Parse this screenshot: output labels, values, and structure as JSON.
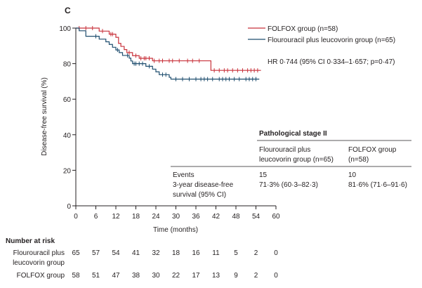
{
  "chart_data": {
    "type": "line",
    "panel_label": "C",
    "xlabel": "Time (months)",
    "ylabel": "Disease-free survival (%)",
    "xlim": [
      0,
      60
    ],
    "ylim": [
      0,
      100
    ],
    "x_ticks": [
      "0",
      "6",
      "12",
      "18",
      "24",
      "30",
      "36",
      "42",
      "48",
      "54",
      "60"
    ],
    "y_ticks": [
      "0",
      "20",
      "40",
      "60",
      "80",
      "100"
    ],
    "grid": false,
    "legend_position": "top-right",
    "series": [
      {
        "name": "FOLFOX group (n=58)",
        "color": "#c8323b",
        "steps": [
          [
            0,
            100
          ],
          [
            7,
            98.3
          ],
          [
            9,
            98.3
          ],
          [
            10,
            96.6
          ],
          [
            12,
            94.8
          ],
          [
            12.8,
            91.4
          ],
          [
            13.5,
            89.7
          ],
          [
            14.5,
            87.9
          ],
          [
            15.3,
            86.2
          ],
          [
            17,
            84.5
          ],
          [
            19,
            83
          ],
          [
            23,
            81.6
          ],
          [
            40,
            81.6
          ],
          [
            40.5,
            76.2
          ],
          [
            55.5,
            76.2
          ]
        ],
        "censor_x": [
          1,
          3,
          5,
          8,
          10.5,
          11,
          16,
          18,
          19.5,
          20.5,
          21,
          22,
          23.5,
          25,
          26,
          28,
          29,
          31,
          33.5,
          35,
          37,
          41.5,
          43,
          44.5,
          45.5,
          47,
          48.5,
          50,
          51.5,
          52.5,
          53.5,
          54.5
        ]
      },
      {
        "name": "Flourouracil plus leucovorin group (n=65)",
        "color": "#1f4e6f",
        "steps": [
          [
            0,
            100
          ],
          [
            1,
            98.5
          ],
          [
            3,
            95.4
          ],
          [
            7,
            93.8
          ],
          [
            9,
            92.3
          ],
          [
            10,
            90.8
          ],
          [
            11,
            89.2
          ],
          [
            12,
            87.7
          ],
          [
            13,
            86.2
          ],
          [
            14,
            84.6
          ],
          [
            16,
            83.1
          ],
          [
            16.5,
            81.5
          ],
          [
            17,
            80
          ],
          [
            21,
            78.5
          ],
          [
            23,
            76.9
          ],
          [
            24,
            75.4
          ],
          [
            25,
            73.8
          ],
          [
            28,
            72.3
          ],
          [
            28.5,
            71.3
          ],
          [
            55,
            71.3
          ]
        ],
        "censor_x": [
          6,
          12.5,
          15.5,
          17.5,
          18,
          19,
          20,
          22,
          26,
          27,
          30,
          32,
          34,
          36,
          37.5,
          38.5,
          39.5,
          41,
          43,
          44,
          45,
          46,
          47.5,
          49,
          51,
          52,
          53,
          54
        ]
      }
    ],
    "annotation": "HR 0·744 (95% CI 0·334–1·657; p=0·47)",
    "inset_table": {
      "title": "Pathological stage II",
      "col1_header": [
        "Flourouracil plus",
        "leucovorin group (n=65)"
      ],
      "col2_header": [
        "FOLFOX group",
        "(n=58)"
      ],
      "rows": [
        {
          "label": [
            "Events"
          ],
          "col1": "15",
          "col2": "10"
        },
        {
          "label": [
            "3-year disease-free",
            "survival (95% CI)"
          ],
          "col1": "71·3% (60·3–82·3)",
          "col2": "81·6% (71·6–91·6)"
        }
      ]
    },
    "number_at_risk": {
      "title": "Number at risk",
      "rows": [
        {
          "label": [
            "Flourouracil plus",
            "leucovorin group"
          ],
          "values": [
            "65",
            "57",
            "54",
            "41",
            "32",
            "18",
            "16",
            "11",
            "5",
            "2",
            "0"
          ]
        },
        {
          "label": [
            "FOLFOX group"
          ],
          "values": [
            "58",
            "51",
            "47",
            "38",
            "30",
            "22",
            "17",
            "13",
            "9",
            "2",
            "0"
          ]
        }
      ]
    }
  }
}
